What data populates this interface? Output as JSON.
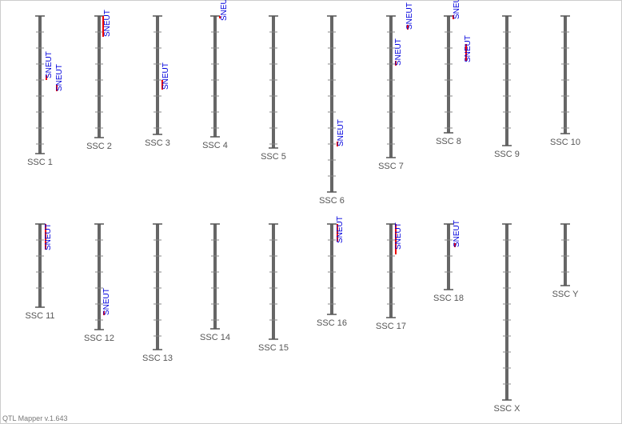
{
  "chromosomes": [
    {
      "label": "SSC 1",
      "qtls": [
        {
          "label": "SNEUT"
        },
        {
          "label": "SNEUT"
        }
      ]
    },
    {
      "label": "SSC 2",
      "qtls": [
        {
          "label": "SNEUT"
        }
      ]
    },
    {
      "label": "SSC 3",
      "qtls": [
        {
          "label": "SNEUT"
        }
      ]
    },
    {
      "label": "SSC 4",
      "qtls": [
        {
          "label": "SNEUT"
        }
      ]
    },
    {
      "label": "SSC 5",
      "qtls": []
    },
    {
      "label": "SSC 6",
      "qtls": [
        {
          "label": "SNEUT"
        }
      ]
    },
    {
      "label": "SSC 7",
      "qtls": [
        {
          "label": "SNEUT"
        },
        {
          "label": "SNEUT"
        }
      ]
    },
    {
      "label": "SSC 8",
      "qtls": [
        {
          "label": "SNEUT"
        },
        {
          "label": "SNEUT"
        }
      ]
    },
    {
      "label": "SSC 9",
      "qtls": []
    },
    {
      "label": "SSC 10",
      "qtls": []
    },
    {
      "label": "SSC 11",
      "qtls": [
        {
          "label": "SNEUT"
        }
      ]
    },
    {
      "label": "SSC 12",
      "qtls": [
        {
          "label": "SNEUT"
        }
      ]
    },
    {
      "label": "SSC 13",
      "qtls": []
    },
    {
      "label": "SSC 14",
      "qtls": []
    },
    {
      "label": "SSC 15",
      "qtls": []
    },
    {
      "label": "SSC 16",
      "qtls": [
        {
          "label": "SNEUT"
        }
      ]
    },
    {
      "label": "SSC 17",
      "qtls": [
        {
          "label": "SNEUT"
        }
      ]
    },
    {
      "label": "SSC 18",
      "qtls": [
        {
          "label": "SNEUT"
        }
      ]
    },
    {
      "label": "SSC X",
      "qtls": []
    },
    {
      "label": "SSC Y",
      "qtls": []
    }
  ],
  "footer": "QTL Mapper v.1.643"
}
